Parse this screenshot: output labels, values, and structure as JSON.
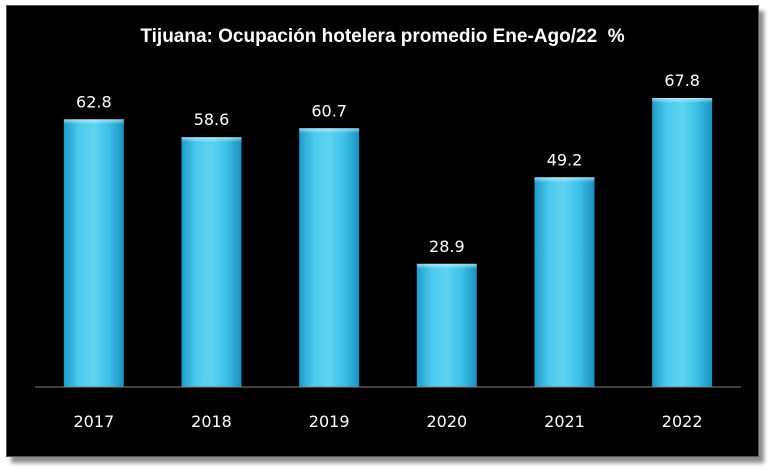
{
  "chart_data": {
    "type": "bar",
    "title": "Tijuana: Ocupación hotelera promedio Ene-Ago/22  %",
    "categories": [
      "2017",
      "2018",
      "2019",
      "2020",
      "2021",
      "2022"
    ],
    "values": [
      62.8,
      58.6,
      60.7,
      28.9,
      49.2,
      67.8
    ],
    "value_labels": [
      "62.8",
      "58.6",
      "60.7",
      "28.9",
      "49.2",
      "67.8"
    ],
    "xlabel": "",
    "ylabel": "",
    "ylim": [
      0,
      80
    ],
    "grid": false,
    "legend": "none",
    "colors": {
      "background": "#000000",
      "bar_light": "#5fd3f1",
      "bar_mid": "#2fb7e3",
      "bar_dark": "#1a8fbd",
      "axis": "#7f7f7f",
      "text": "#ffffff"
    }
  }
}
